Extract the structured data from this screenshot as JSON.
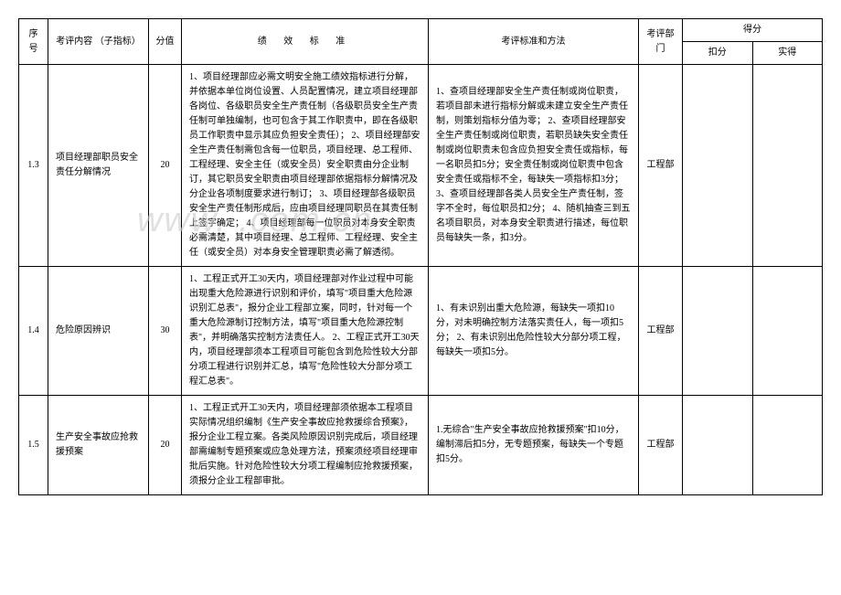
{
  "watermark": "www.              .com.cn",
  "headers": {
    "num": "序号",
    "content": "考评内容 （子指标）",
    "score": "分值",
    "standard": "绩 效 标 准",
    "method": "考评标准和方法",
    "dept": "考评部门",
    "points": "得分",
    "deduct": "扣分",
    "actual": "实得"
  },
  "rows": [
    {
      "num": "1.3",
      "content": "项目经理部职员安全责任分解情况",
      "score": "20",
      "standard": "1、项目经理部应必需文明安全施工绩效指标进行分解，并依据本单位岗位设置、人员配置情况，建立项目经理部各岗位、各级职员安全生产责任制（各级职员安全生产责任制可单独编制，也可包含于其工作职责中，即在各级职员工作职责中显示其应负担安全责任）；\n2、项目经理部安全生产责任制需包含每一位职员，项目经理、总工程师、工程经理、安全主任（或安全员）安全职责由分企业制订，其它职员安全职责由项目经理部依据指标分解情况及分企业各项制度要求进行制订；\n3、项目经理部各级职员安全生产责任制形成后，应由项目经理同职员在其责任制上签字确定；\n4、项目经理部每一位职员对本身安全职责必需清楚，其中项目经理、总工程师、工程经理、安全主任（或安全员）对本身安全管理职责必需了解透彻。",
      "method": "1、查项目经理部安全生产责任制或岗位职责，若项目部未进行指标分解或未建立安全生产责任制，则策划指标分值为零；\n2、查项目经理部安全生产责任制或岗位职责，若职员缺失安全责任制或岗位职责未包含应负担安全责任或指标，每一名职员扣5分；安全责任制或岗位职责中包含安全责任或指标不全，每缺失一项指标扣3分；\n3、查项目经理部各类人员安全生产责任制，签字不全时，每位职员扣2分；\n4、随机抽查三到五名项目职员，对本身安全职责进行描述，每位职员每缺失一条，扣3分。",
      "dept": "工程部"
    },
    {
      "num": "1.4",
      "content": "危险原因辨识",
      "score": "30",
      "standard": "1、工程正式开工30天内，项目经理部对作业过程中可能出现重大危险源进行识别和评价，填写\"项目重大危险源识别汇总表\"，报分企业工程部立案，同时，针对每一个重大危险源制订控制方法，填写\"项目重大危险源控制表\"，并明确落实控制方法责任人。\n2、工程正式开工30天内，项目经理部须本工程项目可能包含到危险性较大分部分项工程进行识别并汇总，填写\"危险性较大分部分项工程汇总表\"。",
      "method": "1、有未识别出重大危险源，每缺失一项扣10分，对未明确控制方法落实责任人，每一项扣5分；\n2、有未识别出危险性较大分部分项工程，每缺失一项扣5分。",
      "dept": "工程部"
    },
    {
      "num": "1.5",
      "content": "生产安全事故应抢救援预案",
      "score": "20",
      "standard": "1、工程正式开工30天内，项目经理部须依据本工程项目实际情况组织编制《生产安全事故应抢救援综合预案》，报分企业工程立案。各类风险原因识别完成后，项目经理部需编制专题预案或应急处理方法，预案须经项目经理审批后实施。针对危险性较大分项工程编制应抢救援预案，须报分企业工程部审批。",
      "method": "1.无综合\"生产安全事故应抢救援预案\"扣10分，编制滞后扣5分，无专题预案，每缺失一个专题扣5分。",
      "dept": "工程部"
    }
  ]
}
